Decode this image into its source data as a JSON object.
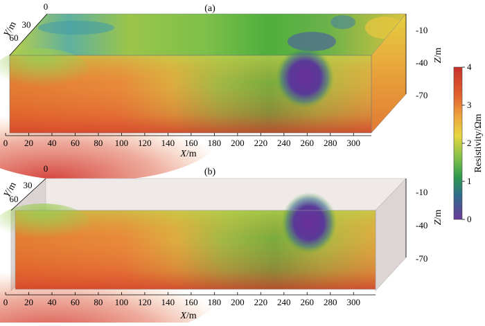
{
  "chart_data": [
    {
      "type": "heatmap",
      "panel_label": "(a)",
      "xlabel_var": "X",
      "xlabel_unit": "/m",
      "ylabel_var": "Y",
      "ylabel_unit": "/m",
      "zlabel_var": "Z",
      "zlabel_unit": "/m",
      "x_ticks": [
        "0",
        "20",
        "40",
        "60",
        "80",
        "100",
        "120",
        "140",
        "160",
        "180",
        "200",
        "220",
        "240",
        "260",
        "280",
        "300"
      ],
      "y_ticks": [
        "0",
        "30",
        "60"
      ],
      "z_ticks": [
        "-10",
        "-40",
        "-70"
      ],
      "xlim": [
        0,
        310
      ],
      "anomalies": [
        {
          "kind": "low",
          "x": 255,
          "depth": -40,
          "value": 0.3
        },
        {
          "kind": "high",
          "x": 40,
          "depth": -75,
          "value": 4.0
        }
      ]
    },
    {
      "type": "heatmap",
      "panel_label": "(b)",
      "xlabel_var": "X",
      "xlabel_unit": "/m",
      "ylabel_var": "Y",
      "ylabel_unit": "/m",
      "zlabel_var": "Z",
      "zlabel_unit": "/m",
      "x_ticks": [
        "0",
        "20",
        "40",
        "60",
        "80",
        "100",
        "120",
        "140",
        "160",
        "180",
        "200",
        "220",
        "240",
        "260",
        "280",
        "300"
      ],
      "y_ticks": [
        "0",
        "30",
        "60"
      ],
      "z_ticks": [
        "-10",
        "-40",
        "-70"
      ],
      "xlim": [
        0,
        310
      ],
      "anomalies": [
        {
          "kind": "low",
          "x": 260,
          "depth": -40,
          "value": 0.3
        },
        {
          "kind": "high",
          "x": 40,
          "depth": -75,
          "value": 4.0
        }
      ]
    }
  ],
  "colorbar": {
    "label": "Resistivity/Ωm",
    "ticks": [
      "4",
      "3",
      "2",
      "1",
      "0"
    ],
    "range": [
      0,
      4
    ],
    "colors": [
      "#d93a2e",
      "#e8a23a",
      "#e8d23c",
      "#4fae3c",
      "#2d8a6e",
      "#5a2d8a"
    ]
  }
}
